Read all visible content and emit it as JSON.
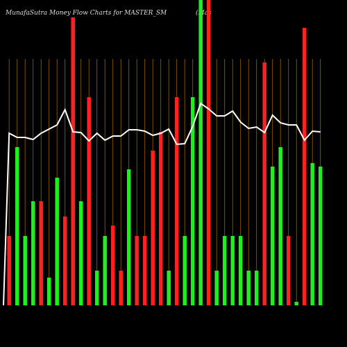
{
  "chart_data": {
    "type": "bar",
    "title": "MunafaSutra  Money Flow  Charts for MASTER_SM",
    "subtitle": "(Mas",
    "ylim": [
      0,
      440
    ],
    "values": [
      100,
      228,
      100,
      150,
      150,
      40,
      184,
      128,
      415,
      150,
      300,
      50,
      100,
      115,
      50,
      196,
      100,
      100,
      223,
      250,
      50,
      300,
      100,
      300,
      440,
      440,
      50,
      100,
      100,
      100,
      50,
      50,
      350,
      200,
      228,
      100,
      5,
      400,
      205,
      200
    ],
    "colors": [
      "#ff2020",
      "#20ee20",
      "#20ee20",
      "#20ee20",
      "#ff2020",
      "#20ee20",
      "#20ee20",
      "#ff2020",
      "#ff2020",
      "#20ee20",
      "#ff2020",
      "#20ee20",
      "#20ee20",
      "#ff2020",
      "#ff2020",
      "#20ee20",
      "#ff2020",
      "#ff2020",
      "#ff2020",
      "#ff2020",
      "#20ee20",
      "#ff2020",
      "#20ee20",
      "#20ee20",
      "#20ee20",
      "#ff2020",
      "#20ee20",
      "#20ee20",
      "#20ee20",
      "#20ee20",
      "#20ee20",
      "#20ee20",
      "#ff2020",
      "#20ee20",
      "#20ee20",
      "#ff2020",
      "#20ee20",
      "#ff2020",
      "#20ee20",
      "#20ee20"
    ],
    "line": {
      "color": "#ffffff",
      "values": [
        248,
        242,
        242,
        239,
        248,
        254,
        260,
        282,
        250,
        249,
        237,
        248,
        238,
        244,
        244,
        253,
        253,
        251,
        245,
        248,
        254,
        232,
        233,
        258,
        291,
        283,
        273,
        273,
        280,
        264,
        255,
        257,
        249,
        274,
        263,
        260,
        260,
        238,
        251,
        250
      ]
    },
    "grid_color": "#a0600a"
  }
}
